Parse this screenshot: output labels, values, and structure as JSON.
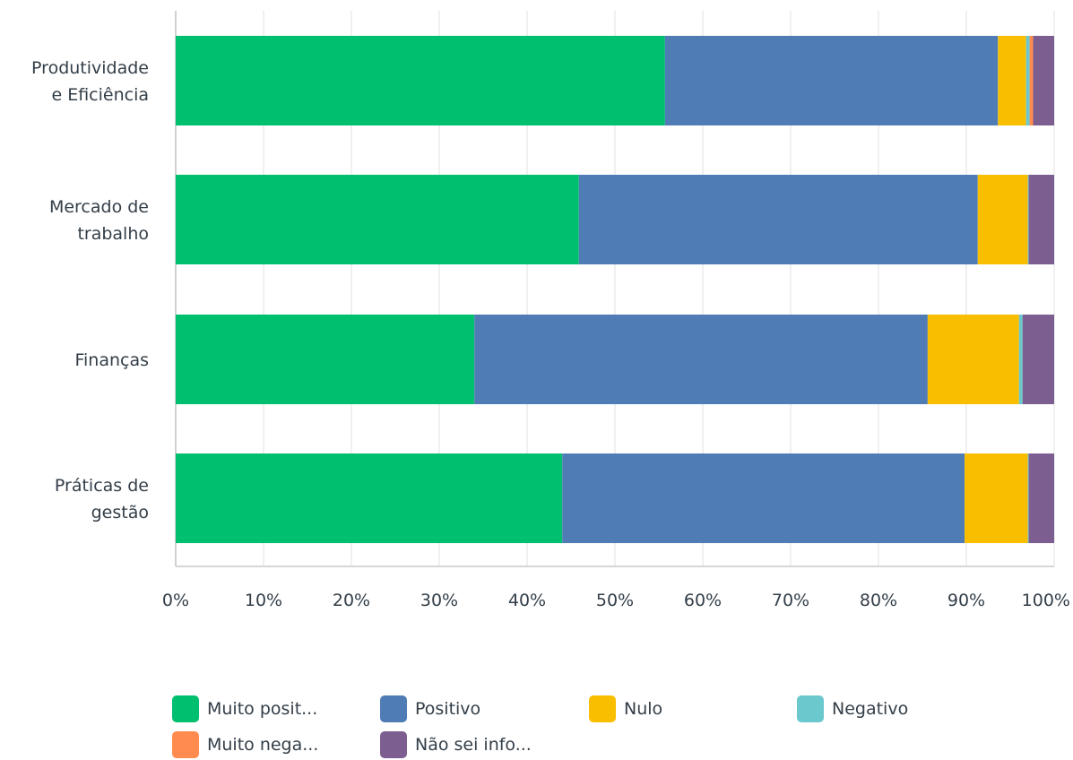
{
  "chart_data": {
    "type": "bar",
    "orientation": "horizontal",
    "stacked": true,
    "categories": [
      "Produtividade\ne Eficiência",
      "Mercado de\ntrabalho",
      "Finanças",
      "Práticas de\ngestão"
    ],
    "xlim": [
      0,
      100
    ],
    "xticks": [
      "0%",
      "10%",
      "20%",
      "30%",
      "40%",
      "50%",
      "60%",
      "70%",
      "80%",
      "90%",
      "100%"
    ],
    "grid": true,
    "legend_position": "bottom",
    "series": [
      {
        "name": "Muito posit...",
        "color": "#00bf6f",
        "values": [
          55.7,
          45.9,
          34.0,
          44.0
        ]
      },
      {
        "name": "Positivo",
        "color": "#507cb6",
        "values": [
          37.9,
          45.4,
          51.6,
          45.8
        ]
      },
      {
        "name": "Nulo",
        "color": "#f9be00",
        "values": [
          3.2,
          5.7,
          10.4,
          7.2
        ]
      },
      {
        "name": "Negativo",
        "color": "#6bc8cd",
        "values": [
          0.4,
          0.1,
          0.4,
          0.1
        ]
      },
      {
        "name": "Muito nega...",
        "color": "#ff8b4f",
        "values": [
          0.4,
          0.0,
          0.0,
          0.0
        ]
      },
      {
        "name": "Não sei info...",
        "color": "#7d5e90",
        "values": [
          2.4,
          2.9,
          3.6,
          2.9
        ]
      }
    ]
  }
}
